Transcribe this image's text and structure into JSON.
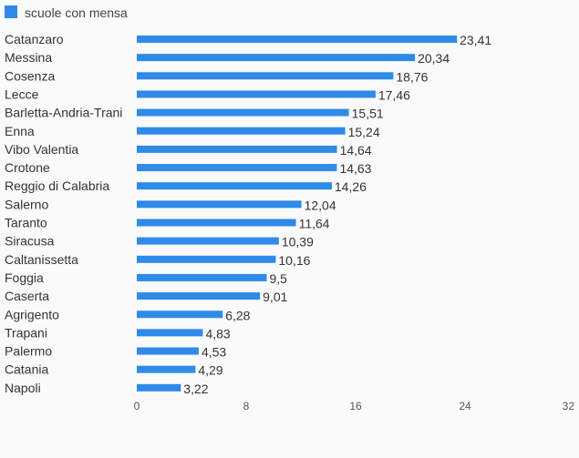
{
  "chart_data": {
    "type": "bar",
    "orientation": "horizontal",
    "title": "",
    "xlabel": "",
    "ylabel": "",
    "legend": {
      "position": "top-left",
      "entries": [
        "scuole con mensa"
      ]
    },
    "categories": [
      "Catanzaro",
      "Messina",
      "Cosenza",
      "Lecce",
      "Barletta-Andria-Trani",
      "Enna",
      "Vibo Valentia",
      "Crotone",
      "Reggio di Calabria",
      "Salerno",
      "Taranto",
      "Siracusa",
      "Caltanissetta",
      "Foggia",
      "Caserta",
      "Agrigento",
      "Trapani",
      "Palermo",
      "Catania",
      "Napoli"
    ],
    "series": [
      {
        "name": "scuole con mensa",
        "color": "#2f8ae8",
        "values": [
          23.41,
          20.34,
          18.76,
          17.46,
          15.51,
          15.24,
          14.64,
          14.63,
          14.26,
          12.04,
          11.64,
          10.39,
          10.16,
          9.5,
          9.01,
          6.28,
          4.83,
          4.53,
          4.29,
          3.22
        ],
        "labels": [
          "23,41",
          "20,34",
          "18,76",
          "17,46",
          "15,51",
          "15,24",
          "14,64",
          "14,63",
          "14,26",
          "12,04",
          "11,64",
          "10,39",
          "10,16",
          "9,5",
          "9,01",
          "6,28",
          "4,83",
          "4,53",
          "4,29",
          "3,22"
        ]
      }
    ],
    "xlim": [
      0,
      32
    ],
    "xticks": [
      0,
      8,
      16,
      24,
      32
    ],
    "xtick_labels": [
      "0",
      "8",
      "16",
      "24",
      "32"
    ],
    "grid": false
  }
}
